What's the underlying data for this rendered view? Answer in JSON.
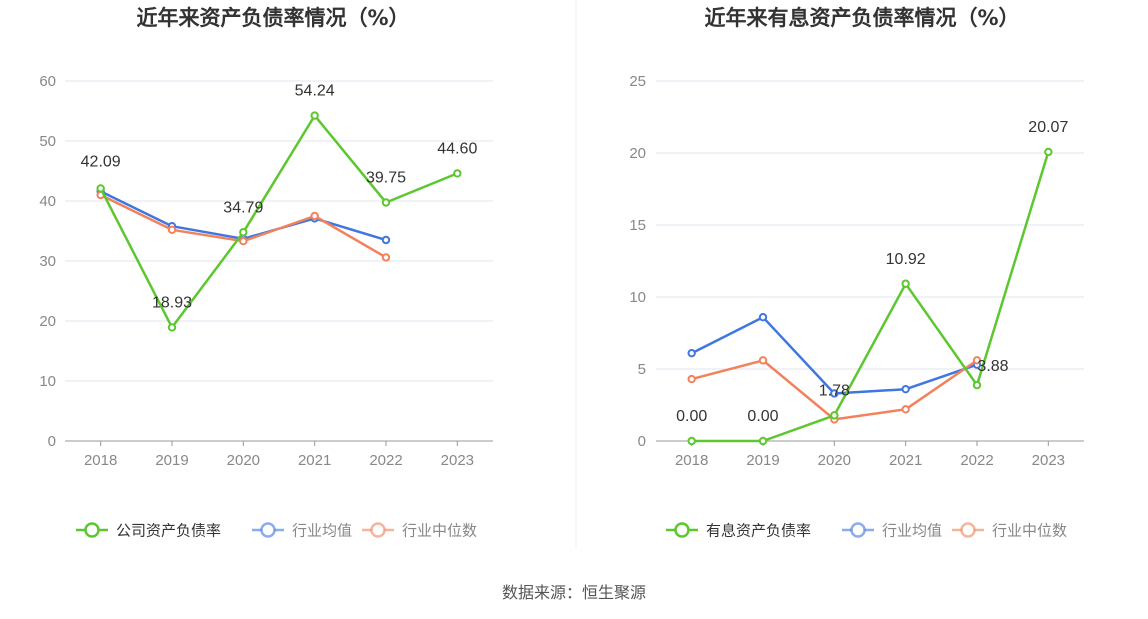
{
  "chart_data": [
    {
      "type": "line",
      "title": "近年来资产负债率情况（%）",
      "categories": [
        "2018",
        "2019",
        "2020",
        "2021",
        "2022",
        "2023"
      ],
      "ylim": [
        0,
        60
      ],
      "yticks": [
        0,
        10,
        20,
        30,
        40,
        50,
        60
      ],
      "grid": true,
      "legend_position": "bottom",
      "series": [
        {
          "name": "公司资产负债率",
          "color": "#5cc72e",
          "values": [
            42.09,
            18.93,
            34.79,
            54.24,
            39.75,
            44.6
          ],
          "labels": [
            "42.09",
            "18.93",
            "34.79",
            "54.24",
            "39.75",
            "44.60"
          ]
        },
        {
          "name": "行业均值",
          "color": "#3f77e0",
          "values": [
            41.6,
            35.8,
            33.7,
            37.1,
            33.5,
            null
          ]
        },
        {
          "name": "行业中位数",
          "color": "#f2825c",
          "values": [
            41.0,
            35.2,
            33.3,
            37.5,
            30.6,
            null
          ]
        }
      ]
    },
    {
      "type": "line",
      "title": "近年来有息资产负债率情况（%）",
      "categories": [
        "2018",
        "2019",
        "2020",
        "2021",
        "2022",
        "2023"
      ],
      "ylim": [
        0,
        25
      ],
      "yticks": [
        0,
        5,
        10,
        15,
        20,
        25
      ],
      "grid": true,
      "legend_position": "bottom",
      "series": [
        {
          "name": "有息资产负债率",
          "color": "#5cc72e",
          "values": [
            0.0,
            0.0,
            1.78,
            10.92,
            3.88,
            20.07
          ],
          "labels": [
            "0.00",
            "0.00",
            "1.78",
            "10.92",
            "3.88",
            "20.07"
          ]
        },
        {
          "name": "行业均值",
          "color": "#3f77e0",
          "values": [
            6.1,
            8.6,
            3.3,
            3.6,
            5.3,
            null
          ]
        },
        {
          "name": "行业中位数",
          "color": "#f2825c",
          "values": [
            4.3,
            5.6,
            1.5,
            2.2,
            5.6,
            null
          ]
        }
      ]
    }
  ],
  "footer": {
    "source": "数据来源：恒生聚源"
  }
}
